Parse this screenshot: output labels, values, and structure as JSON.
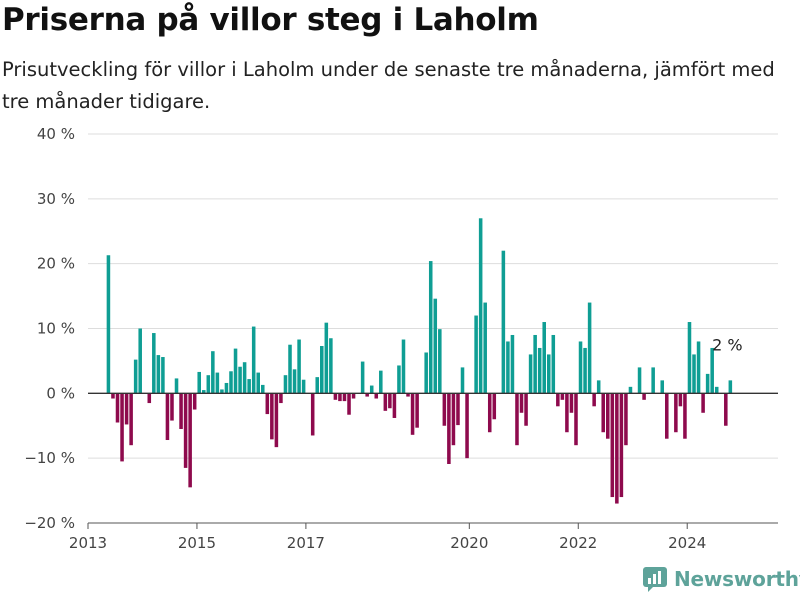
{
  "title": "Priserna på villor steg i Laholm",
  "subtitle": "Prisutveckling för villor i Laholm under de senaste tre månaderna, jämfört med tre månader tidigare.",
  "brand": "Newsworthy",
  "colors": {
    "positive": "#0f9e94",
    "negative": "#8e0a4d",
    "grid": "#dddddd",
    "zero": "#333333",
    "brand": "#5ea39a"
  },
  "chart_data": {
    "type": "bar",
    "title": "Priserna på villor steg i Laholm",
    "subtitle": "Prisutveckling för villor i Laholm under de senaste tre månaderna, jämfört med tre månader tidigare.",
    "xlabel": "",
    "ylabel": "",
    "unit": "%",
    "ylim": [
      -20,
      40
    ],
    "yticks": [
      -20,
      -10,
      0,
      10,
      20,
      30,
      40
    ],
    "ytick_labels": [
      "−20 %",
      "−10 %",
      "0 %",
      "10 %",
      "20 %",
      "30 %",
      "40 %"
    ],
    "xlim": [
      "2013-01",
      "2025-09"
    ],
    "xticks": [
      {
        "label": "2013",
        "x": "2013-01"
      },
      {
        "label": "2015",
        "x": "2015-01"
      },
      {
        "label": "2017",
        "x": "2017-01"
      },
      {
        "label": "2020",
        "x": "2020-01"
      },
      {
        "label": "2022",
        "x": "2022-01"
      },
      {
        "label": "2024",
        "x": "2024-01"
      }
    ],
    "grid": true,
    "legend": "none",
    "last_value_label": "2 %",
    "values": [
      [
        "2013-05",
        21.3
      ],
      [
        "2013-06",
        -0.8
      ],
      [
        "2013-07",
        -4.5
      ],
      [
        "2013-08",
        -10.5
      ],
      [
        "2013-09",
        -4.8
      ],
      [
        "2013-10",
        -8.0
      ],
      [
        "2013-11",
        5.2
      ],
      [
        "2013-12",
        10.0
      ],
      [
        "2014-02",
        -1.5
      ],
      [
        "2014-03",
        9.3
      ],
      [
        "2014-04",
        5.9
      ],
      [
        "2014-05",
        5.6
      ],
      [
        "2014-06",
        -7.2
      ],
      [
        "2014-07",
        -4.2
      ],
      [
        "2014-08",
        2.3
      ],
      [
        "2014-09",
        -5.5
      ],
      [
        "2014-10",
        -11.5
      ],
      [
        "2014-11",
        -14.5
      ],
      [
        "2014-12",
        -2.5
      ],
      [
        "2015-01",
        3.3
      ],
      [
        "2015-02",
        0.5
      ],
      [
        "2015-03",
        2.8
      ],
      [
        "2015-04",
        6.5
      ],
      [
        "2015-05",
        3.2
      ],
      [
        "2015-06",
        0.6
      ],
      [
        "2015-07",
        1.6
      ],
      [
        "2015-08",
        3.4
      ],
      [
        "2015-09",
        6.9
      ],
      [
        "2015-10",
        4.1
      ],
      [
        "2015-11",
        4.8
      ],
      [
        "2015-12",
        2.2
      ],
      [
        "2016-01",
        10.3
      ],
      [
        "2016-02",
        3.2
      ],
      [
        "2016-03",
        1.3
      ],
      [
        "2016-04",
        -3.2
      ],
      [
        "2016-05",
        -7.1
      ],
      [
        "2016-06",
        -8.3
      ],
      [
        "2016-07",
        -1.5
      ],
      [
        "2016-08",
        2.8
      ],
      [
        "2016-09",
        7.5
      ],
      [
        "2016-10",
        3.7
      ],
      [
        "2016-11",
        8.3
      ],
      [
        "2016-12",
        2.1
      ],
      [
        "2017-02",
        -6.5
      ],
      [
        "2017-03",
        2.5
      ],
      [
        "2017-04",
        7.3
      ],
      [
        "2017-05",
        10.9
      ],
      [
        "2017-06",
        8.5
      ],
      [
        "2017-07",
        -1.0
      ],
      [
        "2017-08",
        -1.2
      ],
      [
        "2017-09",
        -1.2
      ],
      [
        "2017-10",
        -3.3
      ],
      [
        "2017-11",
        -0.8
      ],
      [
        "2018-01",
        4.9
      ],
      [
        "2018-02",
        -0.5
      ],
      [
        "2018-03",
        1.2
      ],
      [
        "2018-04",
        -0.8
      ],
      [
        "2018-05",
        3.5
      ],
      [
        "2018-06",
        -2.7
      ],
      [
        "2018-07",
        -2.3
      ],
      [
        "2018-08",
        -3.8
      ],
      [
        "2018-09",
        4.3
      ],
      [
        "2018-10",
        8.3
      ],
      [
        "2018-11",
        -0.5
      ],
      [
        "2018-12",
        -6.4
      ],
      [
        "2019-01",
        -5.3
      ],
      [
        "2019-03",
        6.3
      ],
      [
        "2019-04",
        20.4
      ],
      [
        "2019-05",
        14.6
      ],
      [
        "2019-06",
        9.9
      ],
      [
        "2019-07",
        -5.0
      ],
      [
        "2019-08",
        -10.9
      ],
      [
        "2019-09",
        -8.0
      ],
      [
        "2019-10",
        -4.9
      ],
      [
        "2019-11",
        4.0
      ],
      [
        "2019-12",
        -10.0
      ],
      [
        "2020-02",
        12.0
      ],
      [
        "2020-03",
        27.0
      ],
      [
        "2020-04",
        14.0
      ],
      [
        "2020-05",
        -6.0
      ],
      [
        "2020-06",
        -4.0
      ],
      [
        "2020-08",
        22.0
      ],
      [
        "2020-09",
        8.0
      ],
      [
        "2020-10",
        9.0
      ],
      [
        "2020-11",
        -8.0
      ],
      [
        "2020-12",
        -3.0
      ],
      [
        "2021-01",
        -5.0
      ],
      [
        "2021-02",
        6.0
      ],
      [
        "2021-03",
        9.0
      ],
      [
        "2021-04",
        7.0
      ],
      [
        "2021-05",
        11.0
      ],
      [
        "2021-06",
        6.0
      ],
      [
        "2021-07",
        9.0
      ],
      [
        "2021-08",
        -2.0
      ],
      [
        "2021-09",
        -1.0
      ],
      [
        "2021-10",
        -6.0
      ],
      [
        "2021-11",
        -3.0
      ],
      [
        "2021-12",
        -8.0
      ],
      [
        "2022-01",
        8.0
      ],
      [
        "2022-02",
        7.0
      ],
      [
        "2022-03",
        14.0
      ],
      [
        "2022-04",
        -2.0
      ],
      [
        "2022-05",
        2.0
      ],
      [
        "2022-06",
        -6.0
      ],
      [
        "2022-07",
        -7.0
      ],
      [
        "2022-08",
        -16.0
      ],
      [
        "2022-09",
        -17.0
      ],
      [
        "2022-10",
        -16.0
      ],
      [
        "2022-11",
        -8.0
      ],
      [
        "2022-12",
        1.0
      ],
      [
        "2023-02",
        4.0
      ],
      [
        "2023-03",
        -1.0
      ],
      [
        "2023-05",
        4.0
      ],
      [
        "2023-07",
        2.0
      ],
      [
        "2023-08",
        -7.0
      ],
      [
        "2023-10",
        -6.0
      ],
      [
        "2023-11",
        -2.0
      ],
      [
        "2023-12",
        -7.0
      ],
      [
        "2024-01",
        11.0
      ],
      [
        "2024-02",
        6.0
      ],
      [
        "2024-03",
        8.0
      ],
      [
        "2024-04",
        -3.0
      ],
      [
        "2024-05",
        3.0
      ],
      [
        "2024-06",
        7.0
      ],
      [
        "2024-07",
        1.0
      ],
      [
        "2024-09",
        -5.0
      ],
      [
        "2024-10",
        2.0
      ]
    ]
  }
}
